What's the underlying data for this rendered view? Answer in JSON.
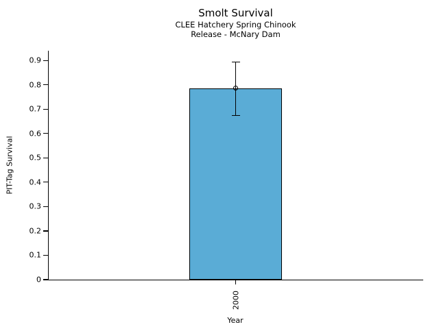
{
  "figure": {
    "title": "Smolt Survival",
    "subtitle_line1": "CLEE Hatchery Spring Chinook",
    "subtitle_line2": "Release - McNary Dam",
    "xlabel": "Year",
    "ylabel": "PIT-Tag Survival"
  },
  "chart_data": {
    "type": "bar",
    "title": "Smolt Survival",
    "subtitle": [
      "CLEE Hatchery Spring Chinook",
      "Release - McNary Dam"
    ],
    "xlabel": "Year",
    "ylabel": "PIT-Tag Survival",
    "categories": [
      "2000"
    ],
    "values": [
      0.786
    ],
    "error_low": [
      0.674
    ],
    "error_high": [
      0.894
    ],
    "point_markers": [
      0.786
    ],
    "ylim": [
      0,
      0.94
    ],
    "yticks": [
      0,
      0.1,
      0.2,
      0.3,
      0.4,
      0.5,
      0.6,
      0.7,
      0.8,
      0.9
    ],
    "ytick_labels": [
      "0",
      "0.1",
      "0.2",
      "0.3",
      "0.4",
      "0.5",
      "0.6",
      "0.7",
      "0.8",
      "0.9"
    ],
    "grid": false,
    "legend": "none",
    "marker_style": "open-circle",
    "bar_color": "#5AACD6",
    "bar_edge_color": "#000000",
    "axis_color": "#000000"
  }
}
